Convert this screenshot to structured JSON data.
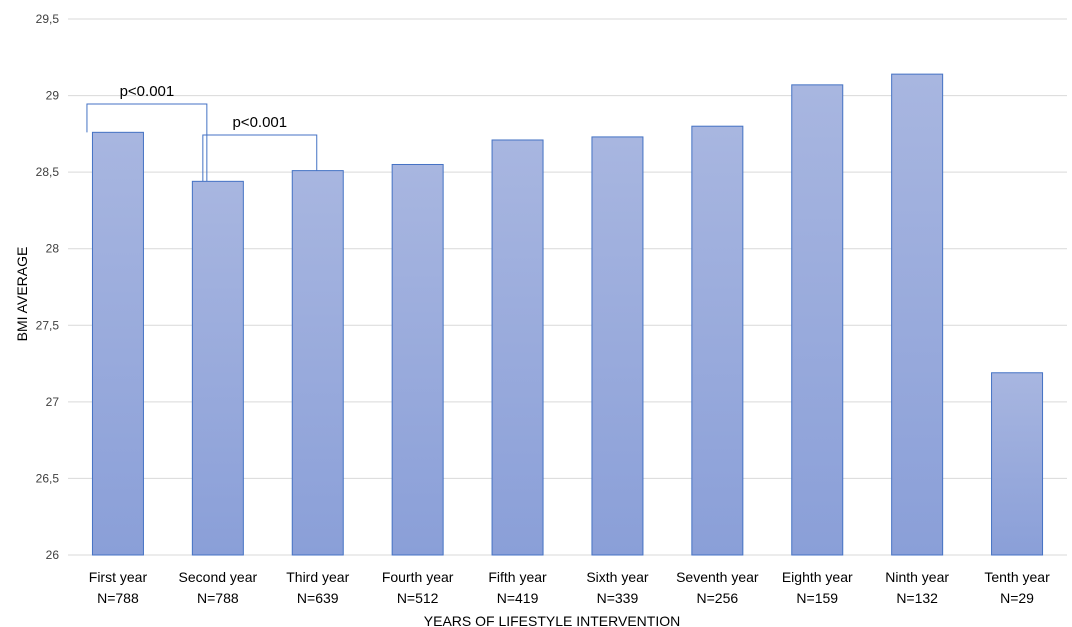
{
  "chart_data": {
    "type": "bar",
    "title": "",
    "xlabel": "YEARS OF LIFESTYLE INTERVENTION",
    "ylabel": "BMI AVERAGE",
    "categories": [
      "First year",
      "Second year",
      "Third year",
      "Fourth year",
      "Fifth year",
      "Sixth year",
      "Seventh year",
      "Eighth year",
      "Ninth year",
      "Tenth year"
    ],
    "n_labels": [
      "N=788",
      "N=788",
      "N=639",
      "N=512",
      "N=419",
      "N=339",
      "N=256",
      "N=159",
      "N=132",
      "N=29"
    ],
    "values": [
      28.76,
      28.44,
      28.51,
      28.55,
      28.71,
      28.73,
      28.8,
      29.07,
      29.14,
      27.19
    ],
    "ylim": [
      26,
      29.5
    ],
    "yticks": [
      26,
      26.5,
      27,
      27.5,
      28,
      28.5,
      29,
      29.5
    ],
    "ytick_labels": [
      "26",
      "26,5",
      "27",
      "27,5",
      "28",
      "28,5",
      "29",
      "29,5"
    ],
    "grid": true,
    "legend": "none",
    "bar_color_top": "#a8b6e0",
    "bar_color_bottom": "#8a9fd8",
    "bar_stroke": "#4472c4",
    "annotations": [
      {
        "label": "p<0.001",
        "from": 0,
        "to": 1
      },
      {
        "label": "p<0.001",
        "from": 1,
        "to": 2
      }
    ]
  }
}
